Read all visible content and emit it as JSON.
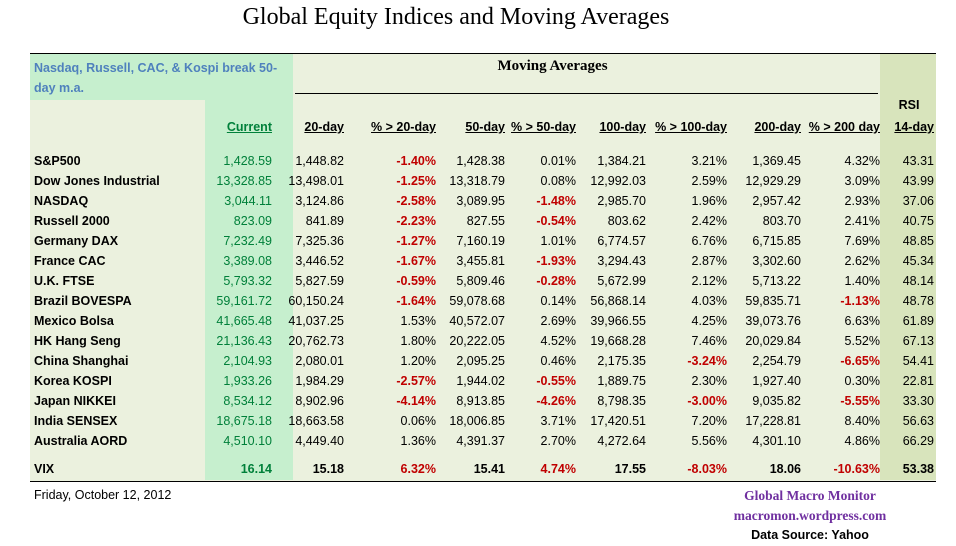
{
  "title": "Global Equity Indices and Moving Averages",
  "note": "Nasdaq, Russell, CAC, & Kospi break 50-day m.a.",
  "ma_title": "Moving Averages",
  "rsi_top": "RSI",
  "headers": [
    "Current",
    "20-day",
    "% > 20-day",
    "50-day",
    "% > 50-day",
    "100-day",
    "% > 100-day",
    "200-day",
    "% > 200 day",
    "14-day"
  ],
  "rows": [
    {
      "name": "S&P500",
      "values": [
        "1,428.59",
        "1,448.82",
        "-1.40%",
        "1,428.38",
        "0.01%",
        "1,384.21",
        "3.21%",
        "1,369.45",
        "4.32%",
        "43.31"
      ]
    },
    {
      "name": "Dow Jones Industrial",
      "values": [
        "13,328.85",
        "13,498.01",
        "-1.25%",
        "13,318.79",
        "0.08%",
        "12,992.03",
        "2.59%",
        "12,929.29",
        "3.09%",
        "43.99"
      ]
    },
    {
      "name": "NASDAQ",
      "values": [
        "3,044.11",
        "3,124.86",
        "-2.58%",
        "3,089.95",
        "-1.48%",
        "2,985.70",
        "1.96%",
        "2,957.42",
        "2.93%",
        "37.06"
      ]
    },
    {
      "name": "Russell 2000",
      "values": [
        "823.09",
        "841.89",
        "-2.23%",
        "827.55",
        "-0.54%",
        "803.62",
        "2.42%",
        "803.70",
        "2.41%",
        "40.75"
      ]
    },
    {
      "name": "Germany DAX",
      "values": [
        "7,232.49",
        "7,325.36",
        "-1.27%",
        "7,160.19",
        "1.01%",
        "6,774.57",
        "6.76%",
        "6,715.85",
        "7.69%",
        "48.85"
      ]
    },
    {
      "name": "France CAC",
      "values": [
        "3,389.08",
        "3,446.52",
        "-1.67%",
        "3,455.81",
        "-1.93%",
        "3,294.43",
        "2.87%",
        "3,302.60",
        "2.62%",
        "45.34"
      ]
    },
    {
      "name": "U.K. FTSE",
      "values": [
        "5,793.32",
        "5,827.59",
        "-0.59%",
        "5,809.46",
        "-0.28%",
        "5,672.99",
        "2.12%",
        "5,713.22",
        "1.40%",
        "48.14"
      ]
    },
    {
      "name": "Brazil BOVESPA",
      "values": [
        "59,161.72",
        "60,150.24",
        "-1.64%",
        "59,078.68",
        "0.14%",
        "56,868.14",
        "4.03%",
        "59,835.71",
        "-1.13%",
        "48.78"
      ]
    },
    {
      "name": "Mexico Bolsa",
      "values": [
        "41,665.48",
        "41,037.25",
        "1.53%",
        "40,572.07",
        "2.69%",
        "39,966.55",
        "4.25%",
        "39,073.76",
        "6.63%",
        "61.89"
      ]
    },
    {
      "name": "HK  Hang Seng",
      "values": [
        "21,136.43",
        "20,762.73",
        "1.80%",
        "20,222.05",
        "4.52%",
        "19,668.28",
        "7.46%",
        "20,029.84",
        "5.52%",
        "67.13"
      ]
    },
    {
      "name": "China Shanghai",
      "values": [
        "2,104.93",
        "2,080.01",
        "1.20%",
        "2,095.25",
        "0.46%",
        "2,175.35",
        "-3.24%",
        "2,254.79",
        "-6.65%",
        "54.41"
      ]
    },
    {
      "name": "Korea KOSPI",
      "values": [
        "1,933.26",
        "1,984.29",
        "-2.57%",
        "1,944.02",
        "-0.55%",
        "1,889.75",
        "2.30%",
        "1,927.40",
        "0.30%",
        "22.81"
      ]
    },
    {
      "name": "Japan NIKKEI",
      "values": [
        "8,534.12",
        "8,902.96",
        "-4.14%",
        "8,913.85",
        "-4.26%",
        "8,798.35",
        "-3.00%",
        "9,035.82",
        "-5.55%",
        "33.30"
      ]
    },
    {
      "name": "India SENSEX",
      "values": [
        "18,675.18",
        "18,663.58",
        "0.06%",
        "18,006.85",
        "3.71%",
        "17,420.51",
        "7.20%",
        "17,228.81",
        "8.40%",
        "56.63"
      ]
    },
    {
      "name": "Australia AORD",
      "values": [
        "4,510.10",
        "4,449.40",
        "1.36%",
        "4,391.37",
        "2.70%",
        "4,272.64",
        "5.56%",
        "4,301.10",
        "4.86%",
        "66.29"
      ]
    }
  ],
  "vix": {
    "name": "VIX",
    "values": [
      "16.14",
      "15.18",
      "6.32%",
      "15.41",
      "4.74%",
      "17.55",
      "-8.03%",
      "18.06",
      "-10.63%",
      "53.38"
    ]
  },
  "footer": {
    "date": "Friday, October 12, 2012",
    "brand1": "Global Macro Monitor",
    "brand2": "macromon.wordpress.com",
    "source": "Data Source: Yahoo"
  },
  "colors": {
    "negative": "#c00000",
    "current": "#00803a",
    "note": "#4f81bd",
    "brand": "#7030a0"
  }
}
